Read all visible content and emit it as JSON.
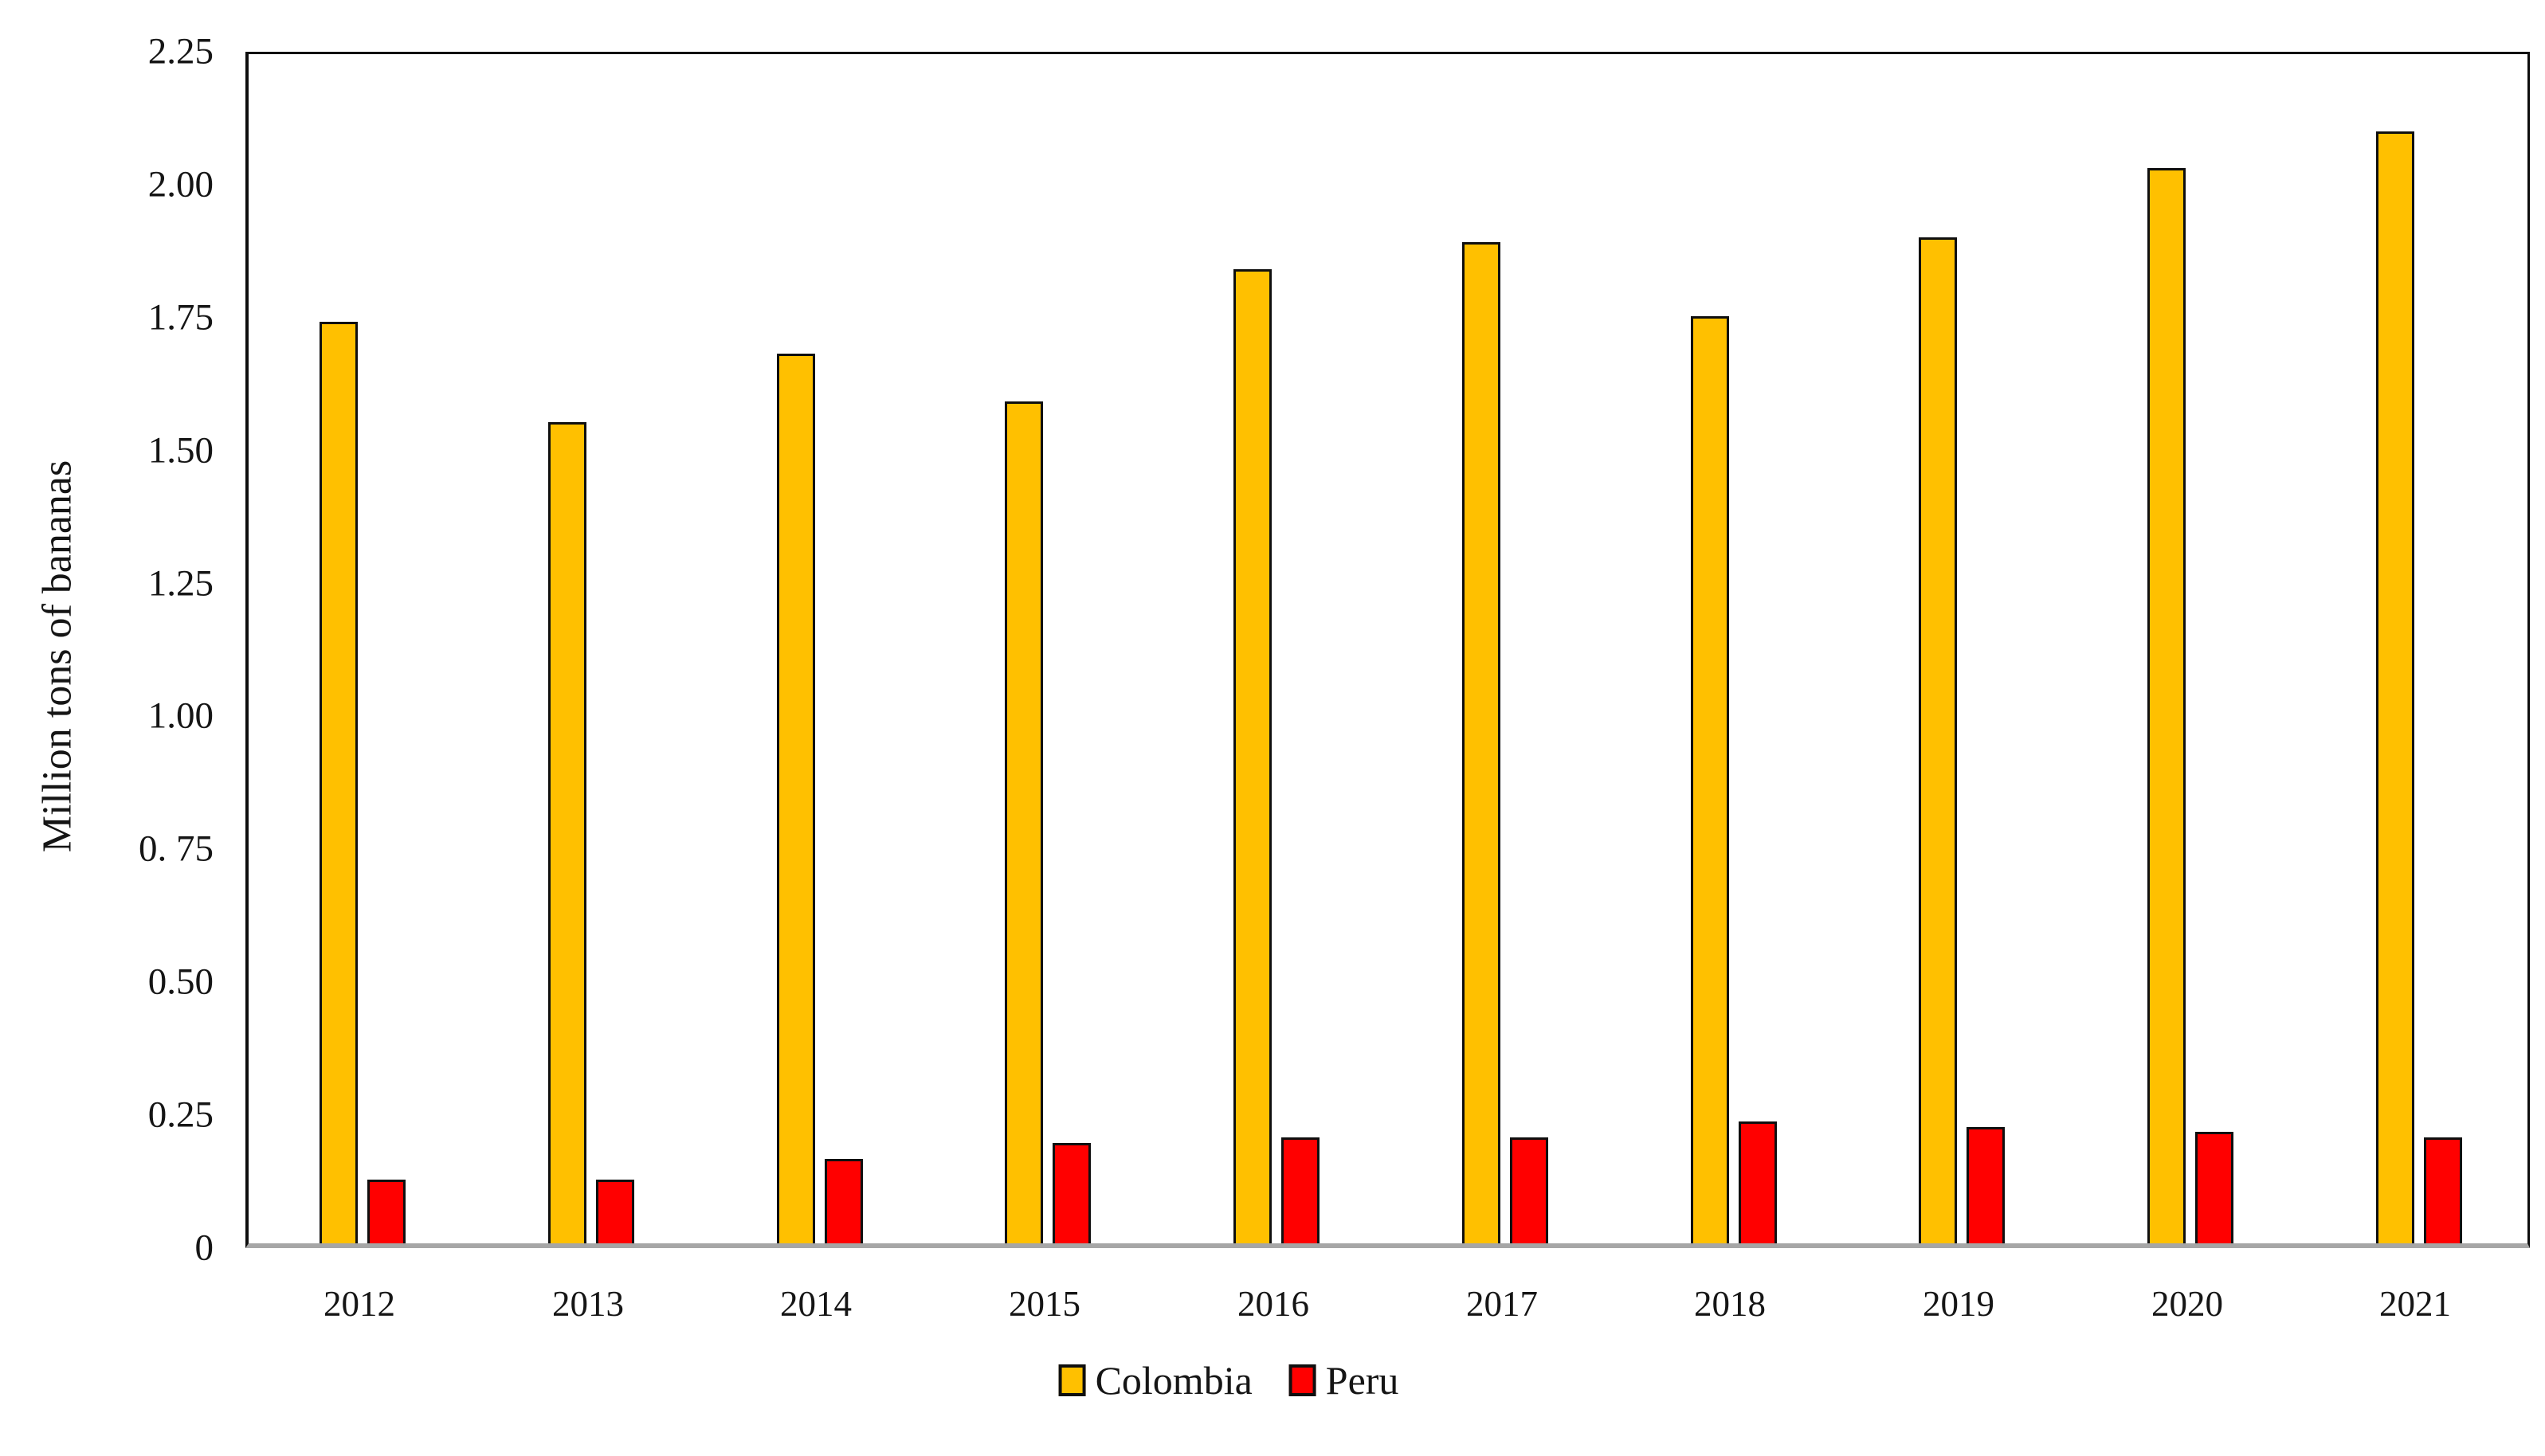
{
  "chart_data": {
    "type": "bar",
    "title": "",
    "xlabel": "",
    "ylabel": "Million tons of bananas",
    "ylim": [
      0,
      2.25
    ],
    "grid": false,
    "legend_position": "bottom",
    "plot_frame_color": "#0d0d0d",
    "baseline_color": "#a6a6a6",
    "categories": [
      "2012",
      "2013",
      "2014",
      "2015",
      "2016",
      "2017",
      "2018",
      "2019",
      "2020",
      "2021"
    ],
    "series": [
      {
        "name": "Colombia",
        "color": "#FFC000",
        "values": [
          1.74,
          1.55,
          1.68,
          1.59,
          1.84,
          1.89,
          1.75,
          1.9,
          2.03,
          2.1
        ]
      },
      {
        "name": "Peru",
        "color": "#FF0000",
        "values": [
          0.12,
          0.12,
          0.16,
          0.19,
          0.2,
          0.2,
          0.23,
          0.22,
          0.21,
          0.2
        ]
      }
    ],
    "yticks": [
      {
        "label": "2.25",
        "value": 2.25
      },
      {
        "label": "2.00",
        "value": 2.0
      },
      {
        "label": "1.75",
        "value": 1.75
      },
      {
        "label": "1.50",
        "value": 1.5
      },
      {
        "label": "1.25",
        "value": 1.25
      },
      {
        "label": "1.00",
        "value": 1.0
      },
      {
        "label": "0. 75",
        "value": 0.75
      },
      {
        "label": "0.50",
        "value": 0.5
      },
      {
        "label": "0.25",
        "value": 0.25
      },
      {
        "label": "0",
        "value": 0
      }
    ]
  }
}
